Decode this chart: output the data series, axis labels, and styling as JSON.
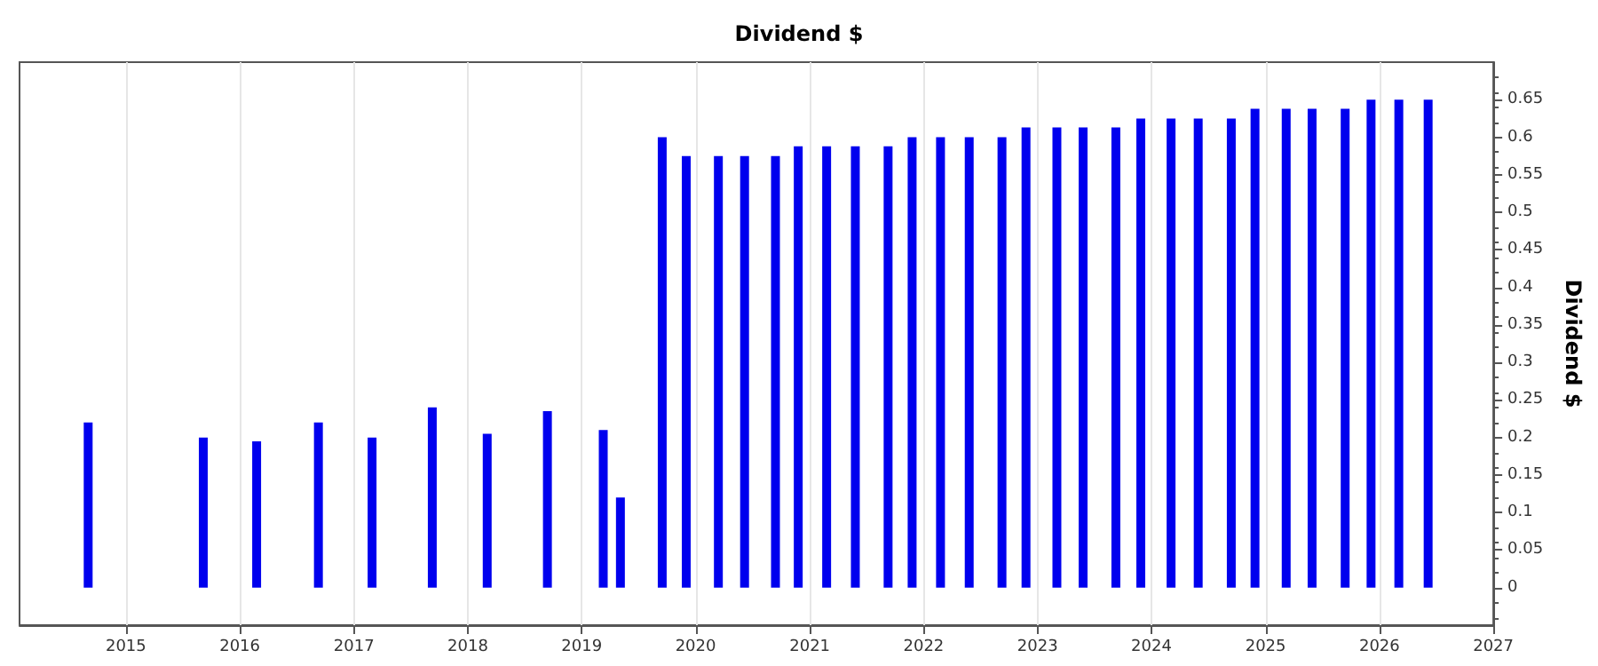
{
  "chart_data": {
    "type": "bar",
    "title": "Dividend $",
    "ylabel": "Dividend $",
    "color": "#0000ee",
    "x": [
      "2014-09-02",
      "2015-09-06",
      "2016-02-24",
      "2016-09-09",
      "2017-02-28",
      "2017-09-09",
      "2018-03-04",
      "2018-09-13",
      "2019-03-11",
      "2019-05-05",
      "2019-09-16",
      "2019-12-02",
      "2020-03-14",
      "2020-06-06",
      "2020-09-13",
      "2020-11-25",
      "2021-02-24",
      "2021-05-27",
      "2021-09-09",
      "2021-11-25",
      "2022-02-24",
      "2022-05-27",
      "2022-09-09",
      "2022-11-25",
      "2023-03-04",
      "2023-05-27",
      "2023-09-09",
      "2023-11-28",
      "2024-03-04",
      "2024-05-30",
      "2024-09-13",
      "2024-11-28",
      "2025-03-08",
      "2025-05-30",
      "2025-09-13",
      "2025-12-05",
      "2026-03-04",
      "2026-06-06"
    ],
    "values": [
      0.22,
      0.2,
      0.195,
      0.22,
      0.2,
      0.24,
      0.205,
      0.235,
      0.21,
      0.12,
      0.6,
      0.575,
      0.575,
      0.575,
      0.575,
      0.588,
      0.588,
      0.588,
      0.588,
      0.6,
      0.6,
      0.6,
      0.6,
      0.613,
      0.613,
      0.613,
      0.613,
      0.625,
      0.625,
      0.625,
      0.625,
      0.638,
      0.638,
      0.638,
      0.638,
      0.65,
      0.65,
      0.65
    ],
    "xlim": [
      "2014-01-25",
      "2027-01-01"
    ],
    "xticks": [
      "2015",
      "2016",
      "2017",
      "2018",
      "2019",
      "2020",
      "2021",
      "2022",
      "2023",
      "2024",
      "2025",
      "2026",
      "2027"
    ],
    "ylim": [
      -0.05,
      0.7
    ],
    "yticks": [
      0,
      0.05,
      0.1,
      0.15,
      0.2,
      0.25,
      0.3,
      0.35,
      0.4,
      0.45,
      0.5,
      0.55,
      0.6,
      0.65
    ],
    "grid": "x"
  }
}
